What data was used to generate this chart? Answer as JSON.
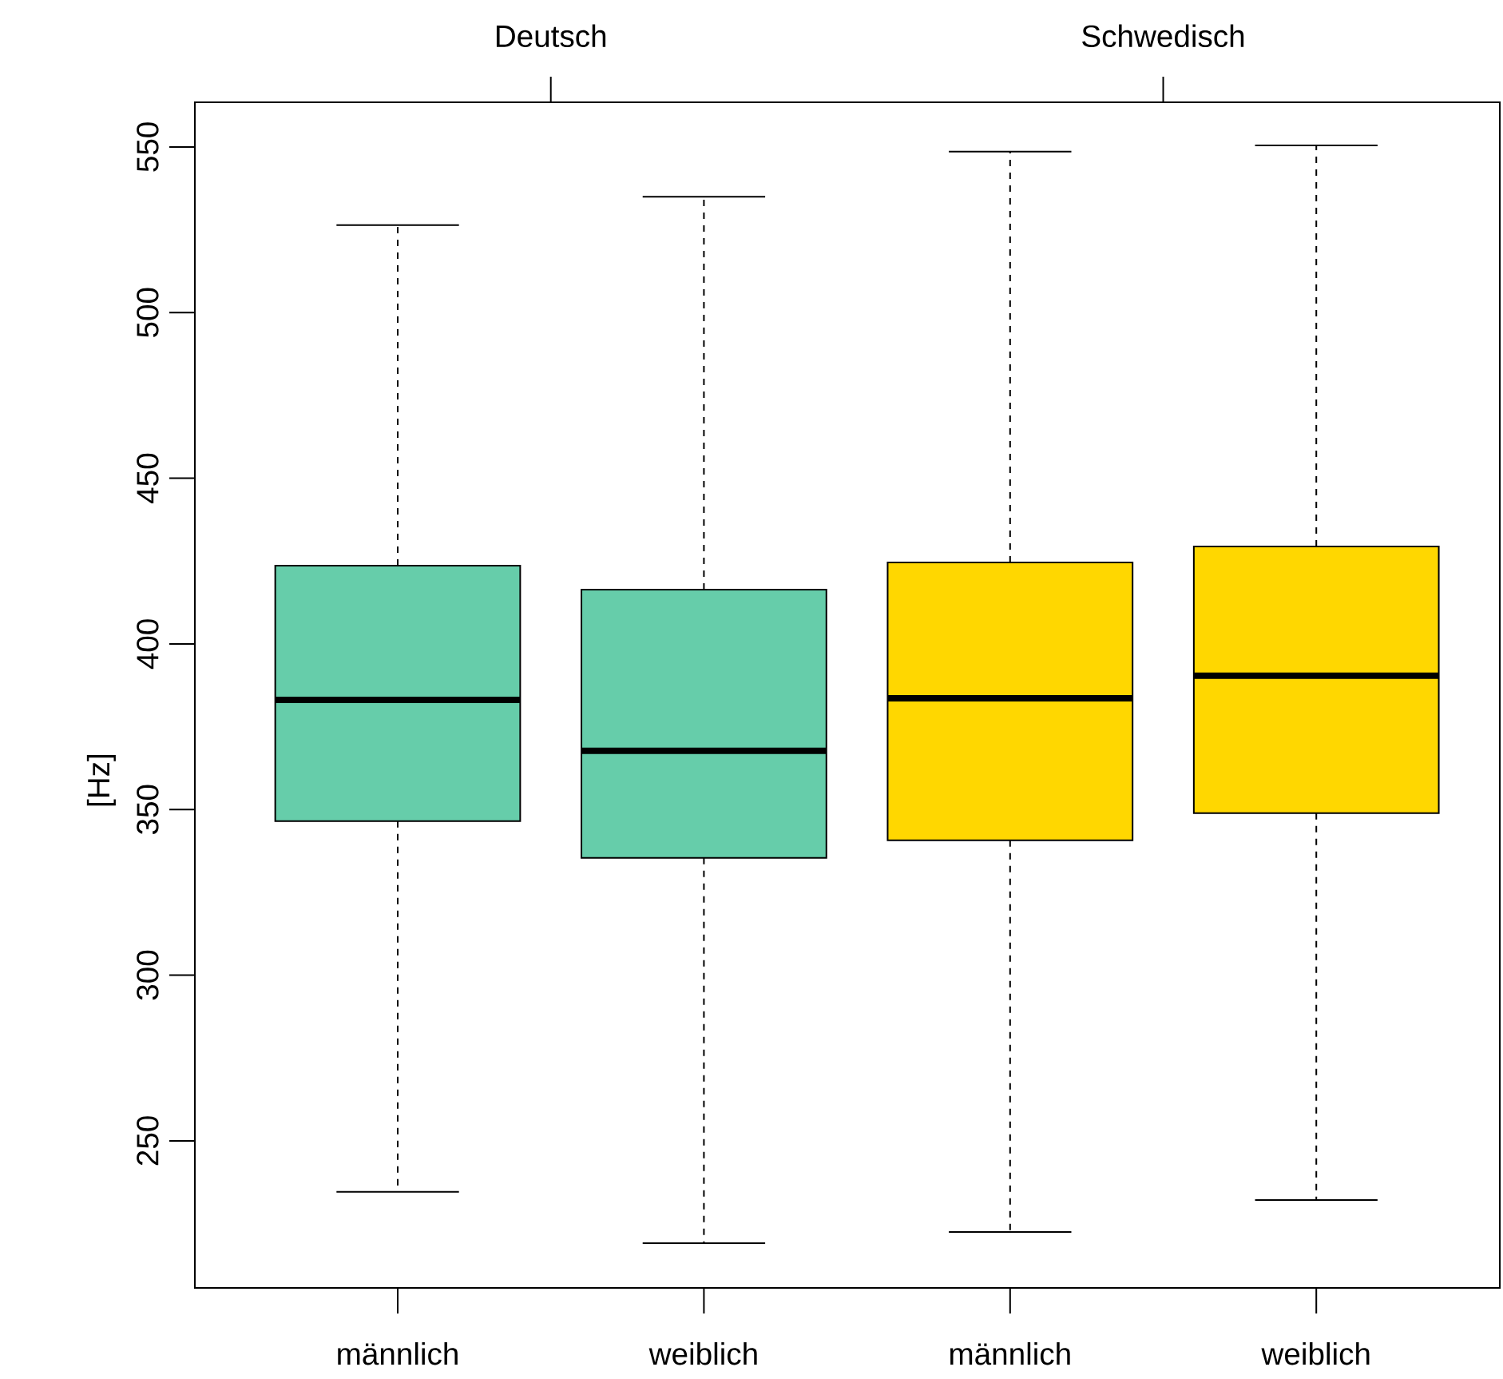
{
  "chart_data": {
    "type": "box",
    "ylabel": "[Hz]",
    "categories": [
      "männlich",
      "weiblich",
      "männlich",
      "weiblich"
    ],
    "series": [
      {
        "color": "#66cdaa",
        "boxes": [
          {
            "low": 234.6,
            "q1": 346.5,
            "median": 383.1,
            "q3": 423.6,
            "high": 526.4
          },
          {
            "low": 219.1,
            "q1": 335.4,
            "median": 367.7,
            "q3": 416.4,
            "high": 535.0
          },
          null,
          null
        ]
      },
      {
        "color": "#ffd700",
        "boxes": [
          null,
          null,
          {
            "low": 222.5,
            "q1": 340.7,
            "median": 383.6,
            "q3": 424.6,
            "high": 548.6
          },
          {
            "low": 232.1,
            "q1": 348.9,
            "median": 390.4,
            "q3": 429.4,
            "high": 550.5
          }
        ]
      }
    ],
    "annotations": [
      "Deutsch",
      "Schwedisch"
    ],
    "ylim": [
      205.6,
      563.5
    ],
    "yticks": [
      250,
      300,
      350,
      400,
      450,
      500,
      550
    ]
  }
}
